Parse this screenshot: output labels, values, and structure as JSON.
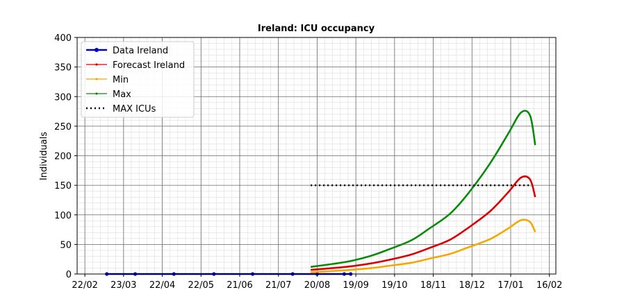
{
  "chart_data": {
    "type": "line",
    "title": "Ireland: ICU occupancy",
    "xlabel": "",
    "ylabel": "Individuals",
    "x_ticks": [
      "22/02",
      "23/03",
      "22/04",
      "22/05",
      "21/06",
      "21/07",
      "20/08",
      "19/09",
      "19/10",
      "18/11",
      "18/12",
      "17/01",
      "16/02"
    ],
    "x_tick_dates": [
      "2020-02-22",
      "2020-03-23",
      "2020-04-22",
      "2020-05-22",
      "2020-06-21",
      "2020-07-21",
      "2020-08-20",
      "2020-09-19",
      "2020-10-19",
      "2020-11-18",
      "2020-12-18",
      "2021-01-17",
      "2021-02-16"
    ],
    "xlim": [
      "2020-02-16",
      "2021-02-21"
    ],
    "ylim": [
      0,
      400
    ],
    "y_ticks": [
      0,
      50,
      100,
      150,
      200,
      250,
      300,
      350,
      400
    ],
    "grid": true,
    "legend_position": "top-left",
    "series": [
      {
        "name": "Data Ireland",
        "color": "#0000cc",
        "style": "solid-dots",
        "x": [
          "2020-03-10",
          "2020-04-01",
          "2020-05-01",
          "2020-06-01",
          "2020-07-01",
          "2020-08-01",
          "2020-08-20",
          "2020-09-10",
          "2020-09-15"
        ],
        "y": [
          0,
          0,
          0,
          0,
          0,
          0,
          0,
          0,
          0
        ]
      },
      {
        "name": "Forecast Ireland",
        "color": "#dd0000",
        "style": "solid",
        "x": [
          "2020-08-15",
          "2020-09-01",
          "2020-09-15",
          "2020-10-01",
          "2020-10-15",
          "2020-11-01",
          "2020-11-15",
          "2020-12-01",
          "2020-12-15",
          "2021-01-01",
          "2021-01-15",
          "2021-01-25",
          "2021-02-01",
          "2021-02-05"
        ],
        "y": [
          7,
          10,
          13,
          18,
          24,
          33,
          44,
          58,
          78,
          106,
          138,
          163,
          160,
          130
        ]
      },
      {
        "name": "Min",
        "color": "#f5a800",
        "style": "solid",
        "x": [
          "2020-08-15",
          "2020-09-01",
          "2020-09-15",
          "2020-10-01",
          "2020-10-15",
          "2020-11-01",
          "2020-11-15",
          "2020-12-01",
          "2020-12-15",
          "2021-01-01",
          "2021-01-15",
          "2021-01-25",
          "2021-02-01",
          "2021-02-05"
        ],
        "y": [
          3,
          5,
          7,
          10,
          14,
          19,
          26,
          34,
          45,
          59,
          77,
          91,
          88,
          71
        ]
      },
      {
        "name": "Max",
        "color": "#0a8a0a",
        "style": "solid",
        "x": [
          "2020-08-15",
          "2020-09-01",
          "2020-09-15",
          "2020-10-01",
          "2020-10-15",
          "2020-11-01",
          "2020-11-15",
          "2020-12-01",
          "2020-12-15",
          "2021-01-01",
          "2021-01-15",
          "2021-01-25",
          "2021-02-01",
          "2021-02-05"
        ],
        "y": [
          12,
          17,
          22,
          31,
          42,
          57,
          77,
          102,
          136,
          187,
          237,
          273,
          268,
          218
        ]
      },
      {
        "name": "MAX ICUs",
        "color": "#000000",
        "style": "dotted",
        "x": [
          "2020-08-15",
          "2021-02-01"
        ],
        "y": [
          150,
          150
        ]
      }
    ]
  }
}
